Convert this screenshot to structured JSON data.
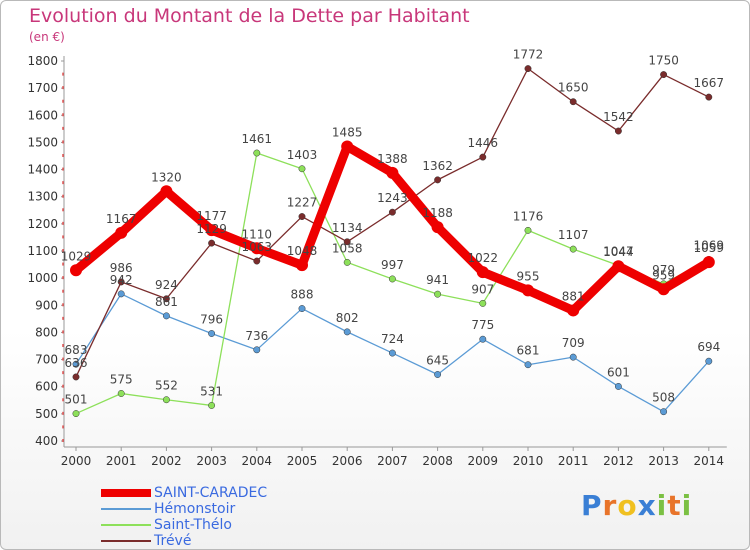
{
  "chart_data": {
    "type": "line",
    "title": "Evolution du Montant de la Dette par Habitant",
    "unit": "(en €)",
    "categories": [
      "2000",
      "2001",
      "2002",
      "2003",
      "2004",
      "2005",
      "2006",
      "2007",
      "2008",
      "2009",
      "2010",
      "2011",
      "2012",
      "2013",
      "2014"
    ],
    "ylim": [
      400,
      1800
    ],
    "yticks": [
      400,
      500,
      600,
      700,
      800,
      900,
      1000,
      1100,
      1200,
      1300,
      1400,
      1500,
      1600,
      1700,
      1800
    ],
    "grid": false,
    "legend_position": "bottom-left",
    "series": [
      {
        "name": "SAINT-CARADEC",
        "color": "#ee0000",
        "values": [
          1029,
          1167,
          1320,
          1177,
          1110,
          1048,
          1485,
          1388,
          1188,
          1022,
          955,
          881,
          1044,
          959,
          1059
        ]
      },
      {
        "name": "Hémonstoir",
        "color": "#5b9bd5",
        "values": [
          683,
          942,
          861,
          796,
          736,
          888,
          802,
          724,
          645,
          775,
          681,
          709,
          601,
          508,
          694
        ]
      },
      {
        "name": "Saint-Thélo",
        "color": "#8de05a",
        "values": [
          501,
          575,
          552,
          531,
          1461,
          1403,
          1058,
          997,
          941,
          907,
          1176,
          1107,
          1047,
          979,
          1069
        ]
      },
      {
        "name": "Trévé",
        "color": "#7a2c2c",
        "values": [
          636,
          986,
          924,
          1129,
          1063,
          1227,
          1134,
          1243,
          1362,
          1446,
          1772,
          1650,
          1542,
          1750,
          1667
        ]
      }
    ]
  },
  "logo": {
    "text": "Proxiti",
    "letters": [
      "P",
      "r",
      "o",
      "x",
      "i",
      "t",
      "i"
    ],
    "colors": [
      "#3a7fd5",
      "#e8742a",
      "#f0c020",
      "#3a7fd5",
      "#7bc043",
      "#e8742a",
      "#7bc043"
    ]
  }
}
